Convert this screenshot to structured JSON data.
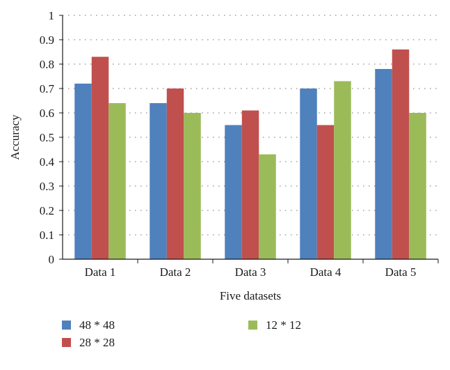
{
  "chart_data": {
    "type": "bar",
    "categories": [
      "Data 1",
      "Data 2",
      "Data 3",
      "Data 4",
      "Data 5"
    ],
    "series": [
      {
        "name": "48 * 48",
        "values": [
          0.72,
          0.64,
          0.55,
          0.7,
          0.78
        ],
        "color": "#4f81bd"
      },
      {
        "name": "28 * 28",
        "values": [
          0.83,
          0.7,
          0.61,
          0.55,
          0.86
        ],
        "color": "#c0504d"
      },
      {
        "name": "12 * 12",
        "values": [
          0.64,
          0.6,
          0.43,
          0.73,
          0.6
        ],
        "color": "#9bbb59"
      }
    ],
    "xlabel": "Five datasets",
    "ylabel": "Accuracy",
    "ylim": [
      0,
      1
    ],
    "yticks": [
      "0",
      "0.1",
      "0.2",
      "0.3",
      "0.4",
      "0.5",
      "0.6",
      "0.7",
      "0.8",
      "0.9",
      "1"
    ],
    "grid": "horizontal dotted",
    "legend_position": "bottom-left"
  }
}
